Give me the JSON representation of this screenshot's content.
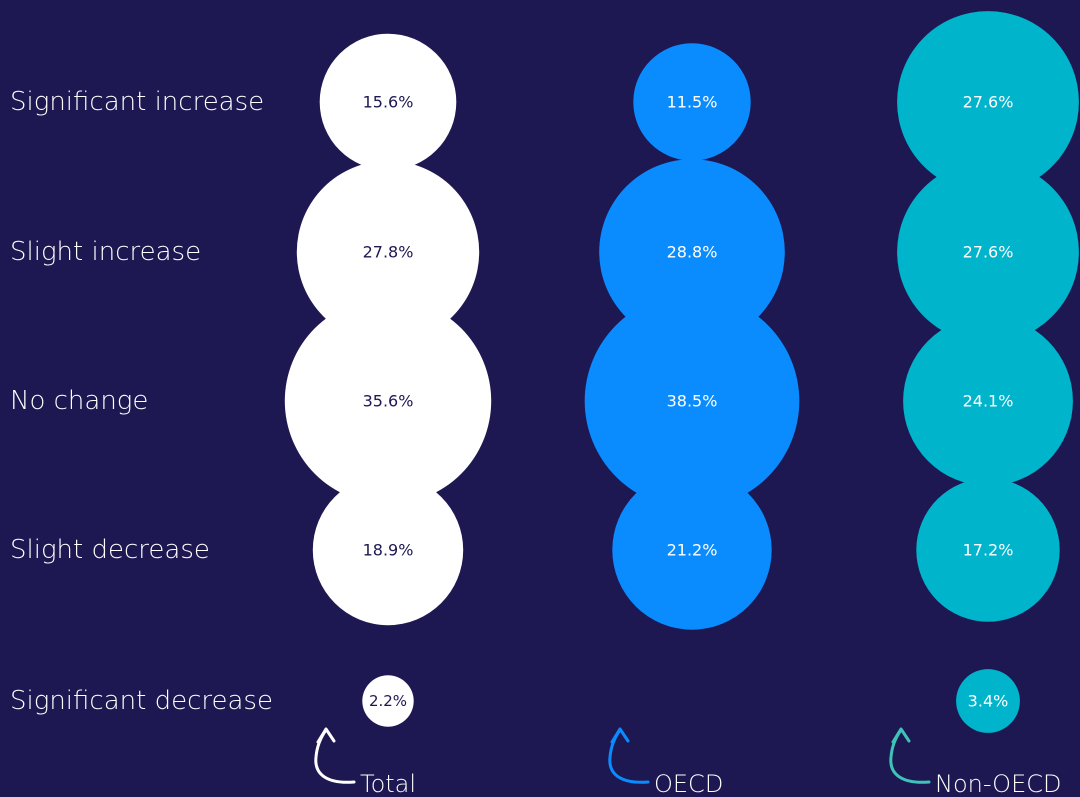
{
  "chart_data": {
    "type": "bubble",
    "categories": [
      "Significant increase",
      "Slight increase",
      "No change",
      "Slight decrease",
      "Significant decrease"
    ],
    "series": [
      {
        "name": "Total",
        "values": [
          15.6,
          27.8,
          35.6,
          18.9,
          2.2
        ],
        "color": "#ffffff",
        "label_color": "#1e1852"
      },
      {
        "name": "OECD",
        "values": [
          11.5,
          28.8,
          38.5,
          21.2,
          null
        ],
        "color": "#0a8cff",
        "label_color": "#ffffff"
      },
      {
        "name": "Non-OECD",
        "values": [
          27.6,
          27.6,
          24.1,
          17.2,
          3.4
        ],
        "color": "#00b4cc",
        "label_color": "#ffffff"
      }
    ],
    "value_suffix": "%",
    "arrow_colors": [
      "#ffffff",
      "#0a8cff",
      "#3fc3b8"
    ]
  },
  "colors": {
    "background": "#1e1852",
    "text": "#ffffff"
  }
}
